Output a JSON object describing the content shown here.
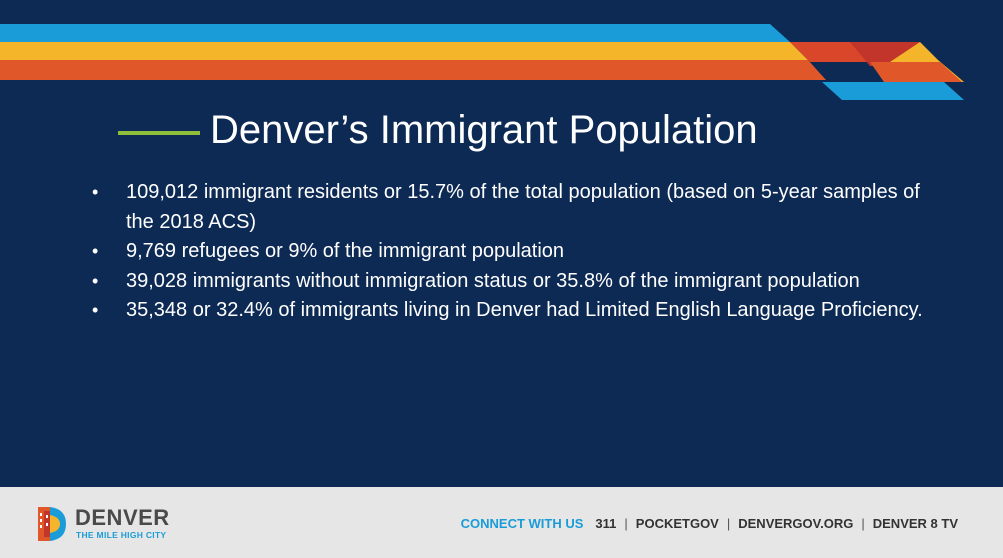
{
  "title": "Denver’s Immigrant Population",
  "bullets": [
    "109,012 immigrant residents or 15.7% of the total population (based on 5-year samples of the 2018 ACS)",
    "9,769 refugees or 9% of the immigrant population",
    "39,028 immigrants without immigration status or 35.8% of the immigrant population",
    "35,348 or 32.4% of immigrants living in Denver had Limited English Language Proficiency."
  ],
  "bullet_char": "•",
  "footer": {
    "brand_name": "DENVER",
    "brand_tagline": "THE MILE HIGH CITY",
    "connect_label": "CONNECT WITH US",
    "links": [
      "311",
      "POCKETGOV",
      "DENVERGOV.ORG",
      "DENVER 8 TV"
    ],
    "separator": "|"
  },
  "colors": {
    "background": "#0d2a55",
    "stripe_blue": "#1a9cd8",
    "stripe_yellow": "#f5b52a",
    "stripe_orange": "#e0582a",
    "accent_line": "#8fbf3a",
    "footer_bg": "#e6e6e6"
  },
  "icons": [
    "denver-logo-icon"
  ]
}
